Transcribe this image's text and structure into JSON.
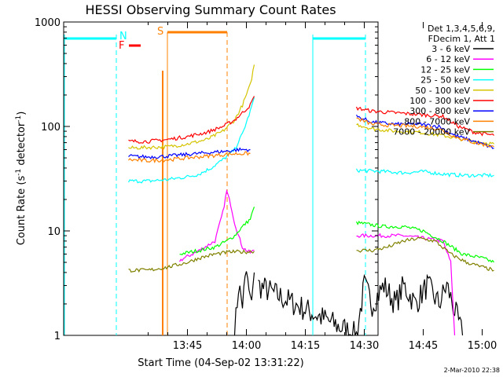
{
  "chart_data": {
    "type": "line",
    "title": "HESSI Observing Summary Count Rates",
    "xlabel": "Start Time (04-Sep-02 13:31:22)",
    "ylabel_parts": [
      "Count Rate (s",
      "-1",
      " detector",
      "-1",
      ")"
    ],
    "yscale": "log",
    "ylim": [
      1,
      1000
    ],
    "xlim_minutes": [
      13.5,
      93.5
    ],
    "x_ticks": [
      {
        "label": "13:45",
        "minute": 45
      },
      {
        "label": "14:00",
        "minute": 60
      },
      {
        "label": "14:15",
        "minute": 75
      },
      {
        "label": "14:30",
        "minute": 90
      },
      {
        "label": "14:45",
        "minute": 105
      },
      {
        "label": "15:00",
        "minute": 120
      }
    ],
    "y_ticks": [
      {
        "label": "1",
        "value": 1
      },
      {
        "label": "10",
        "value": 10
      },
      {
        "label": "100",
        "value": 100
      },
      {
        "label": "1000",
        "value": 1000
      }
    ],
    "legend": {
      "position": "right",
      "header": [
        "Det 1,3,4,5,6,9,",
        "FDecim 1, Att 1"
      ],
      "entries": [
        {
          "label": "3 - 6 keV",
          "color": "#000000"
        },
        {
          "label": "6 - 12 keV",
          "color": "#ff00ff"
        },
        {
          "label": "12 - 25 keV",
          "color": "#00ff00"
        },
        {
          "label": "25 - 50 keV",
          "color": "#00ffff"
        },
        {
          "label": "50 - 100 keV",
          "color": "#d4c400"
        },
        {
          "label": "100 - 300 keV",
          "color": "#ff0000"
        },
        {
          "label": "300 - 800 keV",
          "color": "#0000ff"
        },
        {
          "label": "800 - 7000 keV",
          "color": "#ff8000"
        },
        {
          "label": "7000 - 20000 keV",
          "color": "#808000"
        }
      ]
    },
    "annotations": [
      {
        "label": "N",
        "color": "#00ffff"
      },
      {
        "label": "F",
        "color": "#ff0000"
      },
      {
        "label": "S",
        "color": "#ff8000"
      }
    ],
    "series": [
      {
        "label": "3 - 6 keV",
        "color": "#000000",
        "points": [
          [
            57,
            1
          ],
          [
            58,
            3
          ],
          [
            59,
            2
          ],
          [
            60,
            4
          ],
          [
            61,
            2
          ],
          [
            62,
            4
          ],
          [
            63,
            3
          ],
          [
            88,
            1
          ],
          [
            90,
            3
          ],
          [
            92,
            2
          ],
          [
            95,
            3
          ],
          [
            98,
            2
          ],
          [
            100,
            3
          ],
          [
            103,
            2
          ],
          [
            106,
            3
          ],
          [
            109,
            2
          ],
          [
            111,
            3
          ],
          [
            115,
            1
          ]
        ]
      },
      {
        "label": "6 - 12 keV",
        "color": "#ff00ff",
        "points": [
          [
            43,
            5.2
          ],
          [
            48,
            6.5
          ],
          [
            52,
            8
          ],
          [
            54,
            15
          ],
          [
            55,
            24
          ],
          [
            56,
            18
          ],
          [
            57,
            12
          ],
          [
            58,
            9
          ],
          [
            59,
            7
          ],
          [
            60,
            6.5
          ],
          [
            61,
            6.2
          ],
          [
            62,
            6.5
          ],
          [
            88,
            9
          ],
          [
            95,
            9
          ],
          [
            100,
            9
          ],
          [
            105,
            8.5
          ],
          [
            110,
            8
          ],
          [
            112,
            5
          ],
          [
            113,
            1
          ]
        ]
      },
      {
        "label": "12 - 25 keV",
        "color": "#00ff00",
        "points": [
          [
            43,
            6
          ],
          [
            48,
            6.5
          ],
          [
            52,
            7
          ],
          [
            55,
            8
          ],
          [
            57,
            9
          ],
          [
            59,
            11
          ],
          [
            61,
            13
          ],
          [
            62,
            17
          ],
          [
            88,
            12
          ],
          [
            95,
            11
          ],
          [
            100,
            11
          ],
          [
            105,
            10
          ],
          [
            110,
            8
          ],
          [
            115,
            6
          ],
          [
            120,
            5.5
          ],
          [
            123,
            5
          ]
        ]
      },
      {
        "label": "25 - 50 keV",
        "color": "#00ffff",
        "points": [
          [
            30,
            30
          ],
          [
            35,
            30
          ],
          [
            40,
            31
          ],
          [
            45,
            33
          ],
          [
            48,
            35
          ],
          [
            51,
            40
          ],
          [
            54,
            48
          ],
          [
            57,
            60
          ],
          [
            59,
            85
          ],
          [
            61,
            140
          ],
          [
            62,
            190
          ],
          [
            88,
            38
          ],
          [
            95,
            37
          ],
          [
            100,
            36
          ],
          [
            105,
            37
          ],
          [
            110,
            35
          ],
          [
            115,
            34
          ],
          [
            123,
            34
          ]
        ]
      },
      {
        "label": "50 - 100 keV",
        "color": "#d4c400",
        "points": [
          [
            30,
            62
          ],
          [
            35,
            63
          ],
          [
            40,
            64
          ],
          [
            45,
            68
          ],
          [
            50,
            75
          ],
          [
            54,
            90
          ],
          [
            57,
            115
          ],
          [
            59,
            160
          ],
          [
            61,
            250
          ],
          [
            62,
            390
          ],
          [
            88,
            105
          ],
          [
            92,
            95
          ],
          [
            98,
            90
          ],
          [
            104,
            88
          ],
          [
            110,
            82
          ],
          [
            116,
            74
          ],
          [
            123,
            68
          ]
        ]
      },
      {
        "label": "100 - 300 keV",
        "color": "#ff0000",
        "points": [
          [
            30,
            72
          ],
          [
            35,
            72
          ],
          [
            40,
            75
          ],
          [
            45,
            80
          ],
          [
            50,
            88
          ],
          [
            54,
            100
          ],
          [
            57,
            115
          ],
          [
            59,
            135
          ],
          [
            61,
            160
          ],
          [
            62,
            195
          ],
          [
            88,
            150
          ],
          [
            92,
            140
          ],
          [
            98,
            135
          ],
          [
            104,
            130
          ],
          [
            110,
            125
          ],
          [
            114,
            100
          ],
          [
            118,
            88
          ],
          [
            123,
            82
          ]
        ]
      },
      {
        "label": "300 - 800 keV",
        "color": "#0000ff",
        "points": [
          [
            30,
            52
          ],
          [
            35,
            51
          ],
          [
            40,
            52
          ],
          [
            45,
            54
          ],
          [
            50,
            56
          ],
          [
            55,
            58
          ],
          [
            58,
            60
          ],
          [
            61,
            60
          ],
          [
            88,
            125
          ],
          [
            92,
            110
          ],
          [
            98,
            105
          ],
          [
            104,
            105
          ],
          [
            109,
            100
          ],
          [
            113,
            82
          ],
          [
            118,
            72
          ],
          [
            123,
            62
          ]
        ]
      },
      {
        "label": "800 - 7000 keV",
        "color": "#ff8000",
        "points": [
          [
            30,
            48
          ],
          [
            35,
            47
          ],
          [
            40,
            48
          ],
          [
            45,
            50
          ],
          [
            50,
            52
          ],
          [
            55,
            54
          ],
          [
            58,
            55
          ],
          [
            61,
            55
          ],
          [
            88,
            120
          ],
          [
            92,
            105
          ],
          [
            98,
            102
          ],
          [
            104,
            100
          ],
          [
            109,
            95
          ],
          [
            113,
            80
          ],
          [
            118,
            70
          ],
          [
            123,
            64
          ]
        ]
      },
      {
        "label": "7000 - 20000 keV",
        "color": "#808000",
        "points": [
          [
            30,
            4.2
          ],
          [
            35,
            4.2
          ],
          [
            40,
            4.5
          ],
          [
            45,
            5
          ],
          [
            48,
            5.5
          ],
          [
            52,
            6
          ],
          [
            56,
            6.3
          ],
          [
            60,
            6.3
          ],
          [
            62,
            6.4
          ],
          [
            88,
            6.5
          ],
          [
            92,
            6.5
          ],
          [
            96,
            7
          ],
          [
            100,
            8
          ],
          [
            104,
            8.5
          ],
          [
            108,
            8
          ],
          [
            112,
            6
          ],
          [
            116,
            5
          ],
          [
            120,
            4.5
          ],
          [
            123,
            4.2
          ]
        ]
      }
    ]
  },
  "timestamp": "2-Mar-2010 22:38"
}
